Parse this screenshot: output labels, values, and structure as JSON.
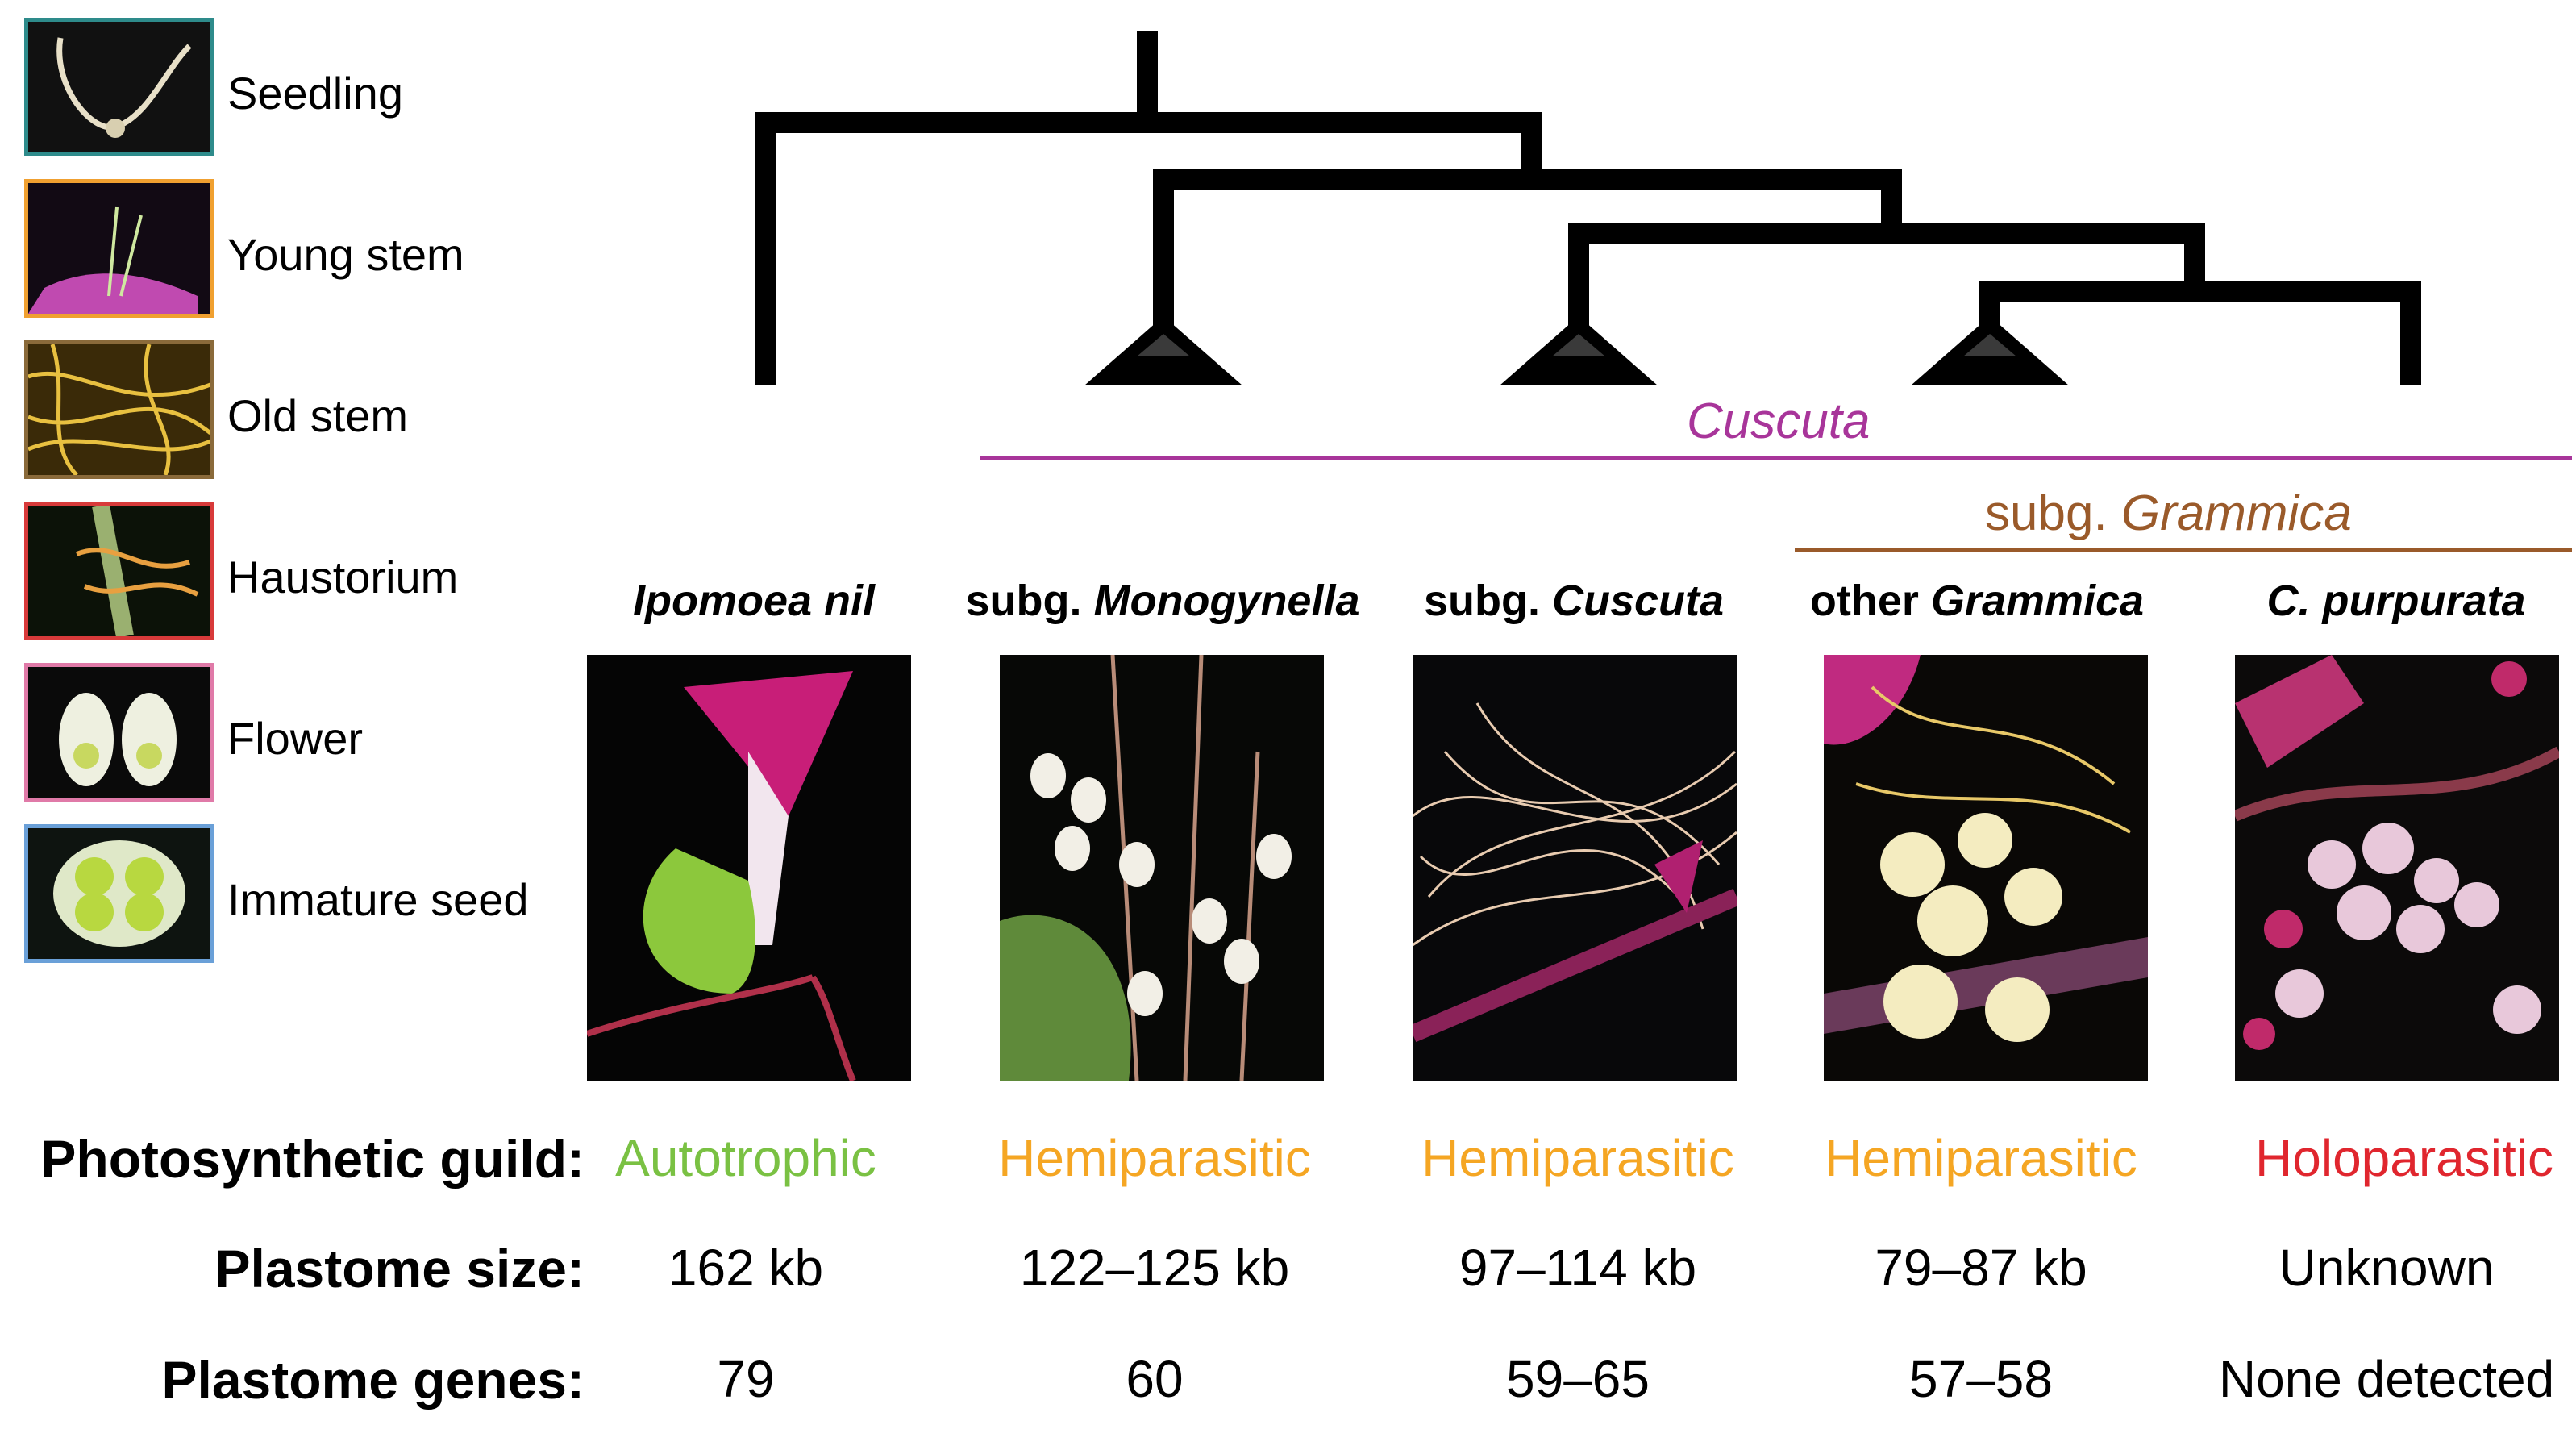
{
  "legend": {
    "items": [
      {
        "label": "Seedling",
        "border": "#2e8b8b"
      },
      {
        "label": "Young stem",
        "border": "#f0a030"
      },
      {
        "label": "Old stem",
        "border": "#8a6a3a"
      },
      {
        "label": "Haustorium",
        "border": "#d83a3a"
      },
      {
        "label": "Flower",
        "border": "#e07aa8"
      },
      {
        "label": "Immature seed",
        "border": "#6aa0d8"
      }
    ]
  },
  "clades": {
    "cuscuta": {
      "label": "Cuscuta",
      "color": "#a8359a"
    },
    "grammica_prefix": "subg. ",
    "grammica": {
      "label": "Grammica",
      "color": "#9a5a2a"
    }
  },
  "taxa": [
    {
      "prefix": "",
      "name": "Ipomoea nil"
    },
    {
      "prefix": "subg. ",
      "name": "Monogynella"
    },
    {
      "prefix": "subg. ",
      "name": "Cuscuta"
    },
    {
      "prefix": "other ",
      "name": "Grammica"
    },
    {
      "prefix": "",
      "name": "C. purpurata"
    }
  ],
  "rows": {
    "guild_label": "Photosynthetic guild:",
    "size_label": "Plastome size:",
    "genes_label": "Plastome genes:",
    "guild": [
      {
        "value": "Autotrophic",
        "color": "#7ac143"
      },
      {
        "value": "Hemiparasitic",
        "color": "#f5a623"
      },
      {
        "value": "Hemiparasitic",
        "color": "#f5a623"
      },
      {
        "value": "Hemiparasitic",
        "color": "#f5a623"
      },
      {
        "value": "Holoparasitic",
        "color": "#e0262e"
      }
    ],
    "size": [
      "162 kb",
      "122–125 kb",
      "97–114 kb",
      "79–87 kb",
      "Unknown"
    ],
    "genes": [
      "79",
      "60",
      "59–65",
      "57–58",
      "None detected"
    ]
  }
}
